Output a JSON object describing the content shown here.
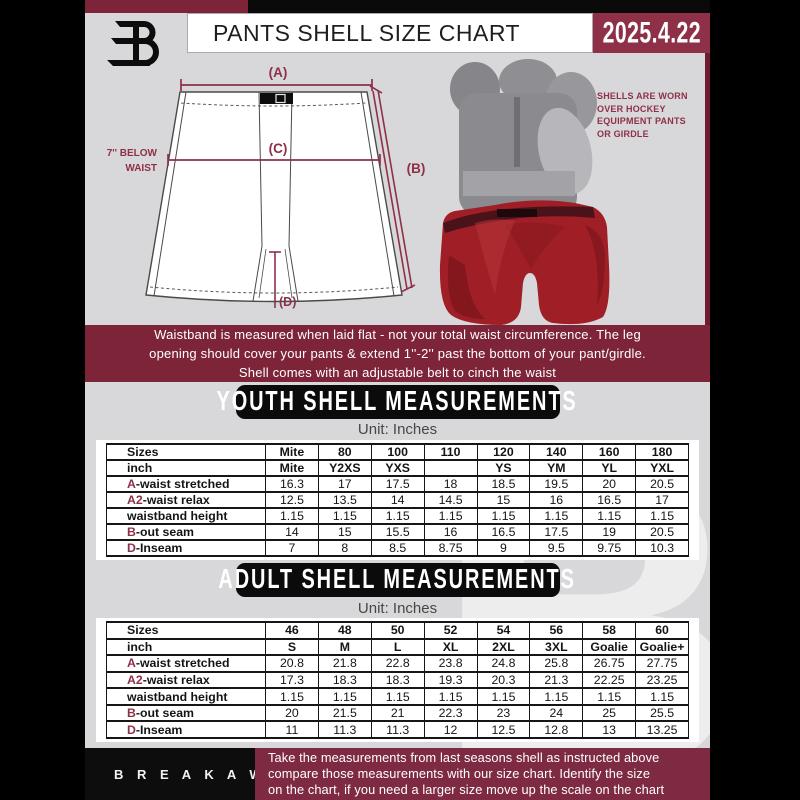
{
  "colors": {
    "maroon": "#7d2439",
    "maroon_bright": "#8e3048",
    "dark_maroon": "#6f1c31",
    "shell_red": "#a01f27",
    "page_gray": "#d8d8da",
    "banner_black": "#0b0b0b"
  },
  "header": {
    "title": "PANTS SHELL SIZE CHART",
    "date": "2025.4.22"
  },
  "watermark_letter": "B",
  "diagram": {
    "label_a": "(A)",
    "label_b": "(B)",
    "label_c": "(C)",
    "label_d": "(D)",
    "side_note_line1": "7'' BELOW",
    "side_note_line2": "WAIST"
  },
  "photo_caption": {
    "lines": [
      "SHELLS ARE WORN",
      "OVER HOCKEY",
      "EQUIPMENT PANTS",
      "OR GIRDLE"
    ]
  },
  "info_banner": {
    "lines": [
      "Waistband is measured when laid flat - not your total waist circumference. The leg",
      "opening should cover your pants & extend 1''-2'' past the bottom of your pant/girdle.",
      "Shell comes with an adjustable belt to cinch the waist"
    ]
  },
  "youth": {
    "heading": "YOUTH SHELL MEASUREMENTS",
    "unit": "Unit: Inches",
    "table": {
      "header_row": [
        "Sizes",
        "Mite",
        "80",
        "100",
        "110",
        "120",
        "140",
        "160",
        "180"
      ],
      "rows": [
        {
          "prefix": "",
          "label": "inch",
          "bold": true,
          "values": [
            "Mite",
            "Y2XS",
            "YXS",
            "",
            "YS",
            "YM",
            "YL",
            "YXL"
          ]
        },
        {
          "prefix": "A",
          "label": "-waist stretched",
          "bold": false,
          "values": [
            "16.3",
            "17",
            "17.5",
            "18",
            "18.5",
            "19.5",
            "20",
            "20.5"
          ]
        },
        {
          "prefix": "A2",
          "label": "-waist relax",
          "bold": false,
          "values": [
            "12.5",
            "13.5",
            "14",
            "14.5",
            "15",
            "16",
            "16.5",
            "17"
          ]
        },
        {
          "prefix": "",
          "label": "waistband height",
          "bold": false,
          "values": [
            "1.15",
            "1.15",
            "1.15",
            "1.15",
            "1.15",
            "1.15",
            "1.15",
            "1.15"
          ]
        },
        {
          "prefix": "B",
          "label": "-out seam",
          "bold": false,
          "values": [
            "14",
            "15",
            "15.5",
            "16",
            "16.5",
            "17.5",
            "19",
            "20.5"
          ]
        },
        {
          "prefix": "D",
          "label": "-Inseam",
          "bold": false,
          "values": [
            "7",
            "8",
            "8.5",
            "8.75",
            "9",
            "9.5",
            "9.75",
            "10.3"
          ]
        }
      ]
    }
  },
  "adult": {
    "heading": "ADULT SHELL MEASUREMENTS",
    "unit": "Unit: Inches",
    "table": {
      "header_row": [
        "Sizes",
        "46",
        "48",
        "50",
        "52",
        "54",
        "56",
        "58",
        "60"
      ],
      "rows": [
        {
          "prefix": "",
          "label": "inch",
          "bold": true,
          "values": [
            "S",
            "M",
            "L",
            "XL",
            "2XL",
            "3XL",
            "Goalie",
            "Goalie+"
          ]
        },
        {
          "prefix": "A",
          "label": "-waist stretched",
          "bold": false,
          "values": [
            "20.8",
            "21.8",
            "22.8",
            "23.8",
            "24.8",
            "25.8",
            "26.75",
            "27.75"
          ]
        },
        {
          "prefix": "A2",
          "label": "-waist relax",
          "bold": false,
          "values": [
            "17.3",
            "18.3",
            "18.3",
            "19.3",
            "20.3",
            "21.3",
            "22.25",
            "23.25"
          ]
        },
        {
          "prefix": "",
          "label": "waistband height",
          "bold": false,
          "values": [
            "1.15",
            "1.15",
            "1.15",
            "1.15",
            "1.15",
            "1.15",
            "1.15",
            "1.15"
          ]
        },
        {
          "prefix": "B",
          "label": "-out seam",
          "bold": false,
          "values": [
            "20",
            "21.5",
            "21",
            "22.3",
            "23",
            "24",
            "25",
            "25.5"
          ]
        },
        {
          "prefix": "D",
          "label": "-Inseam",
          "bold": false,
          "values": [
            "11",
            "11.3",
            "11.3",
            "12",
            "12.5",
            "12.8",
            "13",
            "13.25"
          ]
        }
      ]
    }
  },
  "footer": {
    "brand": "B R E A K A W A Y",
    "lines": [
      "Take the measurements from last seasons shell as instructed above",
      "compare those measurements  with our size chart. Identify the size",
      "on the chart, if you need a larger size move up the scale on the chart"
    ]
  }
}
